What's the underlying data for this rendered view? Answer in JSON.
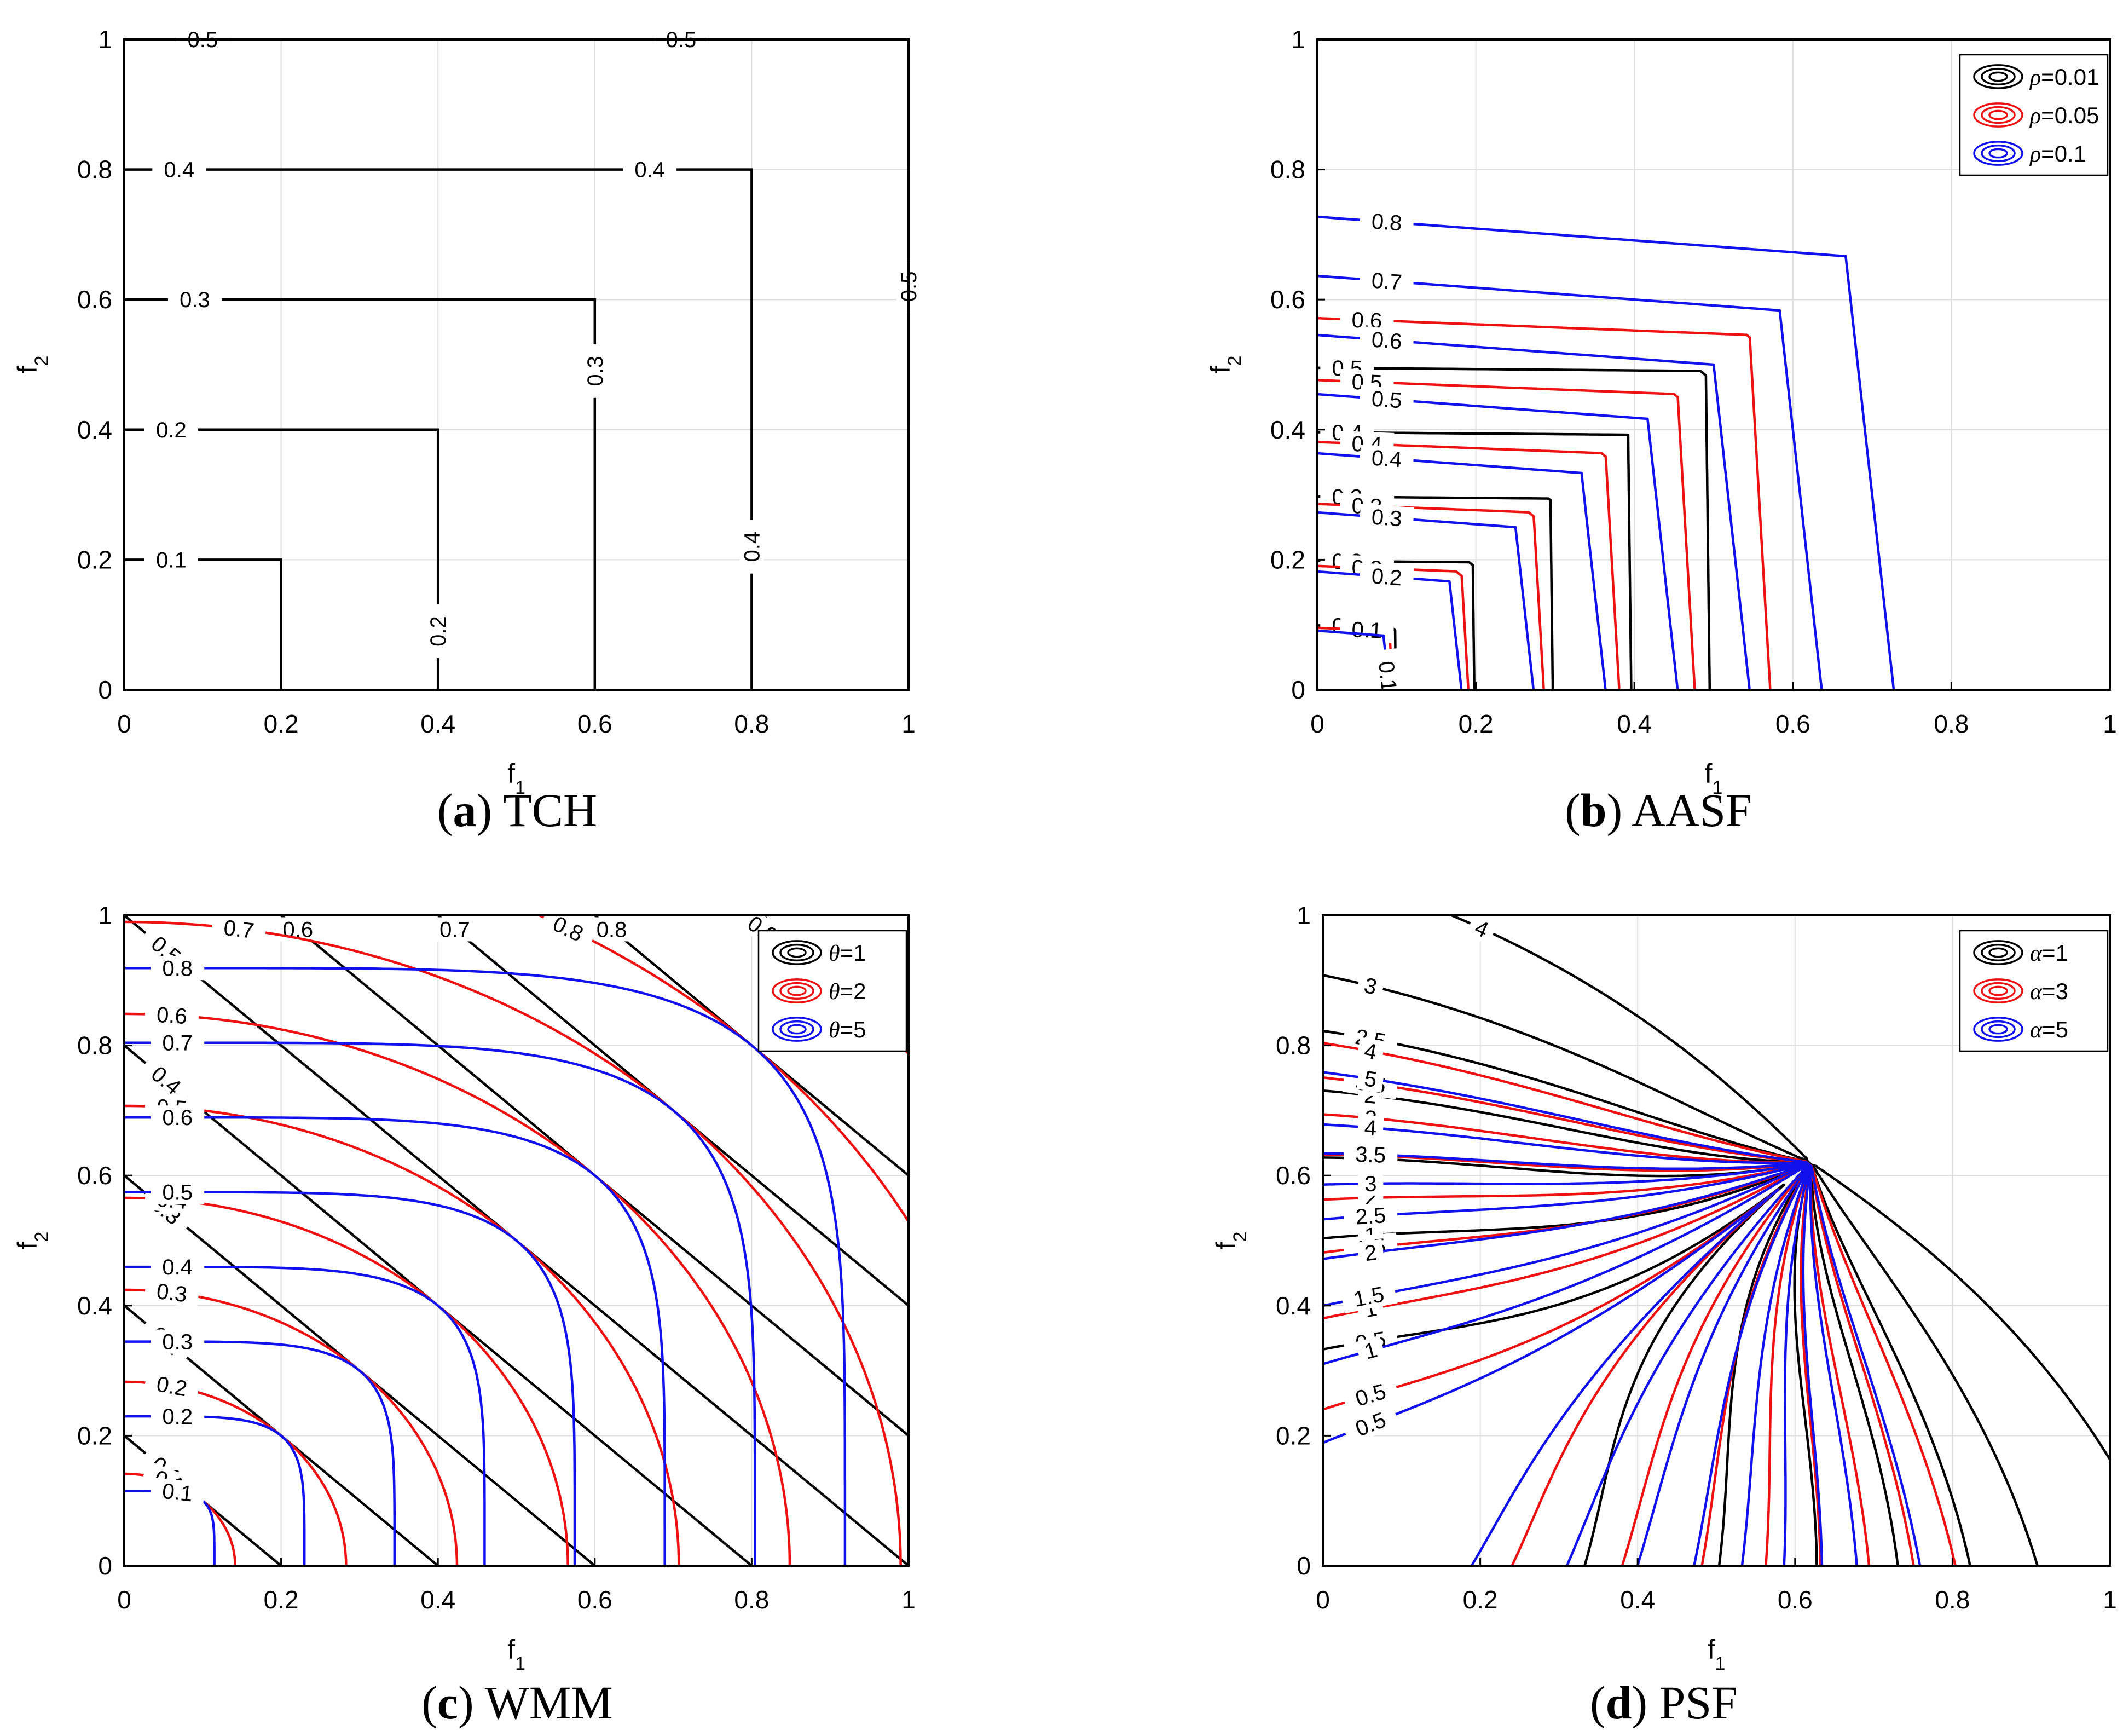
{
  "colors": {
    "black": "#000000",
    "red": "#ee1111",
    "blue": "#1111ee",
    "grid": "#dddddd"
  },
  "chart_data": [
    {
      "type": "contour",
      "title": "TCH",
      "caption_letter": "a",
      "xlabel": "f",
      "xlabel_sub": "1",
      "ylabel": "f",
      "ylabel_sub": "2",
      "xlim": [
        0,
        1
      ],
      "ylim": [
        0,
        1
      ],
      "xticks": [
        "0",
        "0.2",
        "0.4",
        "0.6",
        "0.8",
        "1"
      ],
      "yticks": [
        "0",
        "0.2",
        "0.4",
        "0.6",
        "0.8",
        "1"
      ],
      "legend": [],
      "levels": [
        {
          "value": 0.1,
          "label": "0.1",
          "label_x": [
            0.06
          ],
          "label_y": [
            0.2
          ]
        },
        {
          "value": 0.2,
          "label": "0.2",
          "label_x": [
            0.06,
            0.4
          ],
          "label_y": [
            0.4,
            0.09
          ]
        },
        {
          "value": 0.3,
          "label": "0.3",
          "label_x": [
            0.09,
            0.6
          ],
          "label_y": [
            0.6,
            0.49
          ]
        },
        {
          "value": 0.4,
          "label": "0.4",
          "label_x": [
            0.07,
            0.67,
            0.8
          ],
          "label_y": [
            0.8,
            0.8,
            0.22
          ]
        },
        {
          "value": 0.5,
          "label": "0.5",
          "label_x": [
            0.1,
            0.71,
            1.0
          ],
          "label_y": [
            1.0,
            1.0,
            0.62
          ]
        }
      ]
    },
    {
      "type": "contour",
      "title": "AASF",
      "caption_letter": "b",
      "xlabel": "f",
      "xlabel_sub": "1",
      "ylabel": "f",
      "ylabel_sub": "2",
      "xlim": [
        0,
        1
      ],
      "ylim": [
        0,
        1
      ],
      "xticks": [
        "0",
        "0.2",
        "0.4",
        "0.6",
        "0.8",
        "1"
      ],
      "yticks": [
        "0",
        "0.2",
        "0.4",
        "0.6",
        "0.8",
        "1"
      ],
      "legend": [
        {
          "symbol": "ρ",
          "value": "=0.01",
          "color": "black"
        },
        {
          "symbol": "ρ",
          "value": "=0.05",
          "color": "red"
        },
        {
          "symbol": "ρ",
          "value": "=0.1",
          "color": "blue"
        }
      ],
      "series": [
        {
          "name": "ρ=0.01",
          "color": "black",
          "rho": 0.01,
          "levels": [
            0.1,
            0.2,
            0.3,
            0.4,
            0.5
          ],
          "level_labels": [
            "0.1",
            "0.2",
            "0.3",
            "0.4",
            "0.5"
          ]
        },
        {
          "name": "ρ=0.05",
          "color": "red",
          "rho": 0.05,
          "levels": [
            0.1,
            0.2,
            0.3,
            0.4,
            0.5,
            0.6
          ],
          "level_labels": [
            "0.1",
            "0.2",
            "0.3",
            "0.4",
            "0.5",
            "0.6"
          ]
        },
        {
          "name": "ρ=0.1",
          "color": "blue",
          "rho": 0.1,
          "levels": [
            0.1,
            0.2,
            0.3,
            0.4,
            0.5,
            0.6,
            0.7,
            0.8
          ],
          "level_labels": [
            "0.1",
            "0.2",
            "0.3",
            "0.4",
            "0.5",
            "0.6",
            "0.7",
            "0.8"
          ]
        }
      ]
    },
    {
      "type": "contour",
      "title": "WMM",
      "caption_letter": "c",
      "xlabel": "f",
      "xlabel_sub": "1",
      "ylabel": "f",
      "ylabel_sub": "2",
      "xlim": [
        0,
        1
      ],
      "ylim": [
        0,
        1
      ],
      "xticks": [
        "0",
        "0.2",
        "0.4",
        "0.6",
        "0.8",
        "1"
      ],
      "yticks": [
        "0",
        "0.2",
        "0.4",
        "0.6",
        "0.8",
        "1"
      ],
      "legend": [
        {
          "symbol": "θ",
          "value": "=1",
          "color": "black"
        },
        {
          "symbol": "θ",
          "value": "=2",
          "color": "red"
        },
        {
          "symbol": "θ",
          "value": "=5",
          "color": "blue"
        }
      ],
      "series": [
        {
          "name": "θ=1",
          "color": "black",
          "theta": 1,
          "levels": [
            0.1,
            0.2,
            0.3,
            0.4,
            0.5,
            0.6,
            0.7,
            0.8,
            0.9
          ],
          "level_labels": [
            "0.1",
            "0.2",
            "0.3",
            "0.4",
            "0.5",
            "0.6",
            "0.7",
            "0.8",
            "0.9"
          ]
        },
        {
          "name": "θ=2",
          "color": "red",
          "theta": 2,
          "levels": [
            0.1,
            0.2,
            0.3,
            0.4,
            0.5,
            0.6,
            0.7,
            0.8,
            0.9
          ],
          "level_labels": [
            "0.1",
            "0.2",
            "0.3",
            "0.4",
            "0.5",
            "0.6",
            "0.7",
            "0.8",
            "0.9"
          ]
        },
        {
          "name": "θ=5",
          "color": "blue",
          "theta": 5,
          "levels": [
            0.1,
            0.2,
            0.3,
            0.4,
            0.5,
            0.6,
            0.7,
            0.8
          ],
          "level_labels": [
            "0.1",
            "0.2",
            "0.3",
            "0.4",
            "0.5",
            "0.6",
            "0.7",
            "0.8"
          ]
        }
      ]
    },
    {
      "type": "contour",
      "title": "PSF",
      "caption_letter": "d",
      "xlabel": "f",
      "xlabel_sub": "1",
      "ylabel": "f",
      "ylabel_sub": "2",
      "xlim": [
        0,
        1
      ],
      "ylim": [
        0,
        1
      ],
      "xticks": [
        "0",
        "0.2",
        "0.4",
        "0.6",
        "0.8",
        "1"
      ],
      "yticks": [
        "0",
        "0.2",
        "0.4",
        "0.6",
        "0.8",
        "1"
      ],
      "legend": [
        {
          "symbol": "α",
          "value": "=1",
          "color": "black"
        },
        {
          "symbol": "α",
          "value": "=3",
          "color": "red"
        },
        {
          "symbol": "α",
          "value": "=5",
          "color": "blue"
        }
      ],
      "series": [
        {
          "name": "α=1",
          "color": "black",
          "alpha": 1,
          "levels": [
            0.5,
            1,
            1.5,
            2,
            2.5,
            3,
            4
          ],
          "level_labels": [
            "0.5",
            "1",
            "1.5",
            "2",
            "2.5",
            "3",
            "4"
          ]
        },
        {
          "name": "α=3",
          "color": "red",
          "alpha": 3,
          "levels": [
            0.5,
            1,
            1.5,
            2,
            2.5,
            3,
            3.5,
            4
          ],
          "level_labels": [
            "0.5",
            "1",
            "1.5",
            "2",
            "2.5",
            "3",
            "3.5",
            "4"
          ]
        },
        {
          "name": "α=5",
          "color": "blue",
          "alpha": 5,
          "levels": [
            0.5,
            1,
            1.5,
            2,
            2.5,
            3,
            3.5,
            4,
            5
          ],
          "level_labels": [
            "0.5",
            "1",
            "1.5",
            "2",
            "2.5",
            "3",
            "3.5",
            "4",
            "5"
          ]
        }
      ]
    }
  ]
}
